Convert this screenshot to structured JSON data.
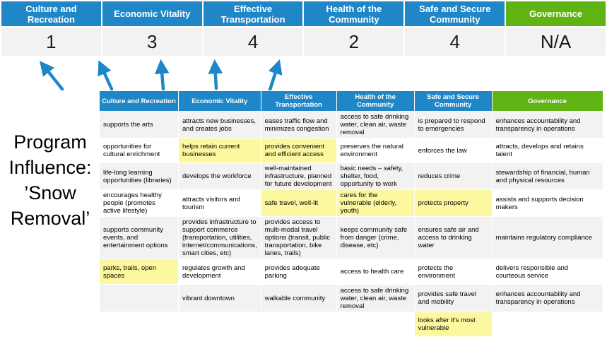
{
  "program_label": "Program\nInfluence:\n’Snow\nRemoval’",
  "colors": {
    "blue": "#1F87C8",
    "green": "#5FB414",
    "yellow": "#FBF89F",
    "band": "#F2F2F2",
    "arrow": "#1F87C8"
  },
  "icons": {
    "score_arrow": "up-arrow-icon"
  },
  "summary": {
    "columns": [
      {
        "label": "Culture and Recreation",
        "score": "1",
        "color": "blue"
      },
      {
        "label": "Economic Vitality",
        "score": "3",
        "color": "blue"
      },
      {
        "label": "Effective Transportation",
        "score": "4",
        "color": "blue"
      },
      {
        "label": "Health of the Community",
        "score": "2",
        "color": "blue"
      },
      {
        "label": "Safe and Secure Community",
        "score": "4",
        "color": "blue"
      },
      {
        "label": "Governance",
        "score": "N/A",
        "color": "green"
      }
    ]
  },
  "matrix": {
    "headers": [
      {
        "label": "Culture and Recreation",
        "color": "blue"
      },
      {
        "label": "Economic Vitality",
        "color": "blue"
      },
      {
        "label": "Effective Transportation",
        "color": "blue"
      },
      {
        "label": "Health of the Community",
        "color": "blue"
      },
      {
        "label": "Safe and Secure Community",
        "color": "blue"
      },
      {
        "label": "Governance",
        "color": "green"
      }
    ],
    "rows": [
      [
        {
          "text": "supports the arts",
          "highlight": false
        },
        {
          "text": "attracts new businesses, and creates jobs",
          "highlight": false
        },
        {
          "text": "eases traffic flow and minimizes congestion",
          "highlight": true
        },
        {
          "text": "access to safe drinking water, clean air, waste removal",
          "highlight": false
        },
        {
          "text": "is prepared to respond to emergencies",
          "highlight": true
        },
        {
          "text": "enhances accountability and transparency in operations",
          "highlight": false
        }
      ],
      [
        {
          "text": "opportunities for cultural enrichment",
          "highlight": false
        },
        {
          "text": "helps retain current businesses",
          "highlight": true
        },
        {
          "text": "provides convenient and efficient access",
          "highlight": true
        },
        {
          "text": "preserves the natural environment",
          "highlight": false
        },
        {
          "text": "enforces the law",
          "highlight": false
        },
        {
          "text": "attracts, develops and retains talent",
          "highlight": false
        }
      ],
      [
        {
          "text": "life-long learning opportunities (libraries)",
          "highlight": false
        },
        {
          "text": "develops the workforce",
          "highlight": false
        },
        {
          "text": "well-maintained infrastructure, planned for future development",
          "highlight": false
        },
        {
          "text": "basic needs – safety, shelter, food, opportunity to work",
          "highlight": true
        },
        {
          "text": "reduces crime",
          "highlight": false
        },
        {
          "text": "stewardship of financial, human and physical resources",
          "highlight": false
        }
      ],
      [
        {
          "text": "encourages healthy people (promotes active lifestyle)",
          "highlight": false
        },
        {
          "text": "attracts visitors and tourism",
          "highlight": false
        },
        {
          "text": "safe travel, well-lit",
          "highlight": true
        },
        {
          "text": "cares for the vulnerable (elderly, youth)",
          "highlight": true
        },
        {
          "text": "protects property",
          "highlight": true
        },
        {
          "text": "assists and supports decision makers",
          "highlight": false
        }
      ],
      [
        {
          "text": "supports community events, and entertainment options",
          "highlight": false
        },
        {
          "text": "provides infrastructure to support commerce (transportation, utilities, internet/communications, smart cities, etc)",
          "highlight": true
        },
        {
          "text": "provides access to multi-modal travel options (transit, public transportation, bike lanes, trails)",
          "highlight": true
        },
        {
          "text": "keeps community safe from danger (crime, disease, etc)",
          "highlight": true
        },
        {
          "text": "ensures safe air and access to drinking water",
          "highlight": false
        },
        {
          "text": "maintains regulatory compliance",
          "highlight": false
        }
      ],
      [
        {
          "text": "parks, trails, open spaces",
          "highlight": true
        },
        {
          "text": "regulates growth and development",
          "highlight": false
        },
        {
          "text": "provides adequate parking",
          "highlight": false
        },
        {
          "text": "access to health care",
          "highlight": false
        },
        {
          "text": "protects the environment",
          "highlight": false
        },
        {
          "text": "delivers responsible and courteous service",
          "highlight": false
        }
      ],
      [
        {
          "text": "",
          "highlight": false
        },
        {
          "text": "vibrant downtown",
          "highlight": false
        },
        {
          "text": "walkable community",
          "highlight": false
        },
        {
          "text": "access to safe drinking water, clean air, waste removal",
          "highlight": false
        },
        {
          "text": "provides safe travel and mobility",
          "highlight": true
        },
        {
          "text": "enhances accountability and transparency in operations",
          "highlight": false
        }
      ],
      [
        {
          "text": "",
          "highlight": false
        },
        {
          "text": "",
          "highlight": false
        },
        {
          "text": "",
          "highlight": false
        },
        {
          "text": "",
          "highlight": false
        },
        {
          "text": "looks after it's most vulnerable",
          "highlight": true
        },
        {
          "text": "",
          "highlight": false
        }
      ]
    ]
  }
}
